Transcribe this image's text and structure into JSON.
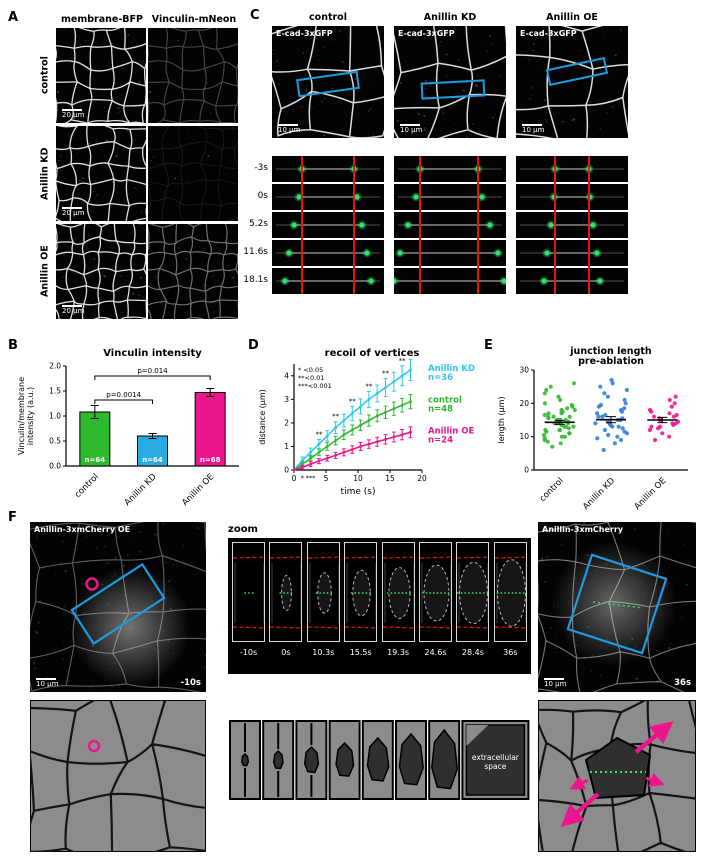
{
  "panels": {
    "A": "A",
    "B": "B",
    "C": "C",
    "D": "D",
    "E": "E",
    "F": "F"
  },
  "colors": {
    "green": "#2db92d",
    "blue": "#29abe2",
    "cyan": "#2ec9f0",
    "magenta": "#ec168c",
    "red": "#e8140c",
    "annotation_blue": "#1e9be0",
    "green_dot": "#2ee56b",
    "dark_cell": "#2f2f2f",
    "schematic_gray": "#8c8c8c"
  },
  "panelA": {
    "col_headers": [
      "membrane-BFP",
      "Vinculin-mNeon"
    ],
    "row_labels": [
      "control",
      "Anillin KD",
      "Anillin OE"
    ],
    "scale_bar": "20 μm"
  },
  "panelC": {
    "col_headers": [
      "control",
      "Anillin KD",
      "Anillin OE"
    ],
    "image_label": "E-cad-3xGFP",
    "scale_bar": "10 μm",
    "time_labels": [
      "-3s",
      "0s",
      "5.2s",
      "11.6s",
      "18.1s"
    ]
  },
  "panelF": {
    "left_label": "Anillin-3xmCherry OE",
    "right_label": "Anillin-3xmCherry",
    "zoom_label": "zoom",
    "scale_bar": "10 μm",
    "left_time": "-10s",
    "right_time": "36s",
    "zoom_times": [
      "-10s",
      "0s",
      "10.3s",
      "15.5s",
      "19.3s",
      "24.6s",
      "28.4s",
      "36s"
    ],
    "extracellular_label": "extracellular space"
  },
  "chart_data": [
    {
      "id": "vinculin_intensity",
      "type": "bar",
      "title": "Vinculin intensity",
      "ylabel": "Vinculin/membrane intensity (a.u.)",
      "ylabel_lines": [
        "Vinculin/membrane",
        "intensity (a.u.)"
      ],
      "categories": [
        "control",
        "Anillin KD",
        "Anillin OE"
      ],
      "values": [
        1.08,
        0.6,
        1.47
      ],
      "errors": [
        0.13,
        0.05,
        0.08
      ],
      "bar_colors": [
        "#2db92d",
        "#29abe2",
        "#ec168c"
      ],
      "n_labels": [
        "n=64",
        "n=64",
        "n=68"
      ],
      "ylim": [
        0,
        2.0
      ],
      "yticks": [
        0,
        0.5,
        1.0,
        1.5,
        2.0
      ],
      "significance": [
        {
          "from": 0,
          "to": 1,
          "label": "p=0.0014",
          "y": 1.32
        },
        {
          "from": 0,
          "to": 2,
          "label": "p=0.014",
          "y": 1.8
        }
      ]
    },
    {
      "id": "recoil_of_vertices",
      "type": "line",
      "title": "recoil of vertices",
      "xlabel": "time (s)",
      "ylabel": "distance (μm)",
      "xlim": [
        0,
        20
      ],
      "ylim": [
        0,
        4.5
      ],
      "xticks": [
        0,
        5,
        10,
        15,
        20
      ],
      "yticks": [
        0,
        1,
        2,
        3,
        4
      ],
      "annotations": [
        "* <0.05",
        "**<0.01",
        "***<0.001"
      ],
      "below_axis_stars": [
        {
          "x": 1.3,
          "label": "*"
        },
        {
          "x": 2.6,
          "label": "***"
        }
      ],
      "x": [
        0,
        1.3,
        2.6,
        3.9,
        5.2,
        6.5,
        7.8,
        9.1,
        10.4,
        11.7,
        13.0,
        14.3,
        15.6,
        16.9,
        18.2
      ],
      "series": [
        {
          "name": "Anillin KD",
          "n_label": "n=36",
          "color": "#2ec9f0",
          "values": [
            0,
            0.4,
            0.75,
            1.1,
            1.45,
            1.8,
            2.1,
            2.4,
            2.7,
            3.0,
            3.25,
            3.5,
            3.75,
            4.0,
            4.25
          ],
          "errors": [
            0,
            0.15,
            0.18,
            0.2,
            0.22,
            0.25,
            0.27,
            0.3,
            0.32,
            0.34,
            0.36,
            0.38,
            0.4,
            0.42,
            0.45
          ],
          "stars_above": "**",
          "star_indices": [
            3,
            5,
            7,
            9,
            11,
            13
          ]
        },
        {
          "name": "control",
          "n_label": "n=48",
          "color": "#2db92d",
          "values": [
            0,
            0.25,
            0.5,
            0.75,
            1.0,
            1.25,
            1.5,
            1.7,
            1.9,
            2.1,
            2.3,
            2.45,
            2.6,
            2.75,
            2.9
          ],
          "errors": [
            0,
            0.1,
            0.12,
            0.14,
            0.16,
            0.18,
            0.2,
            0.21,
            0.22,
            0.24,
            0.25,
            0.26,
            0.28,
            0.29,
            0.3
          ],
          "stars_above": "",
          "star_indices": []
        },
        {
          "name": "Anillin OE",
          "n_label": "n=24",
          "color": "#ec168c",
          "values": [
            0,
            0.12,
            0.25,
            0.38,
            0.5,
            0.62,
            0.75,
            0.87,
            1.0,
            1.1,
            1.2,
            1.3,
            1.4,
            1.5,
            1.6
          ],
          "errors": [
            0,
            0.08,
            0.1,
            0.11,
            0.12,
            0.13,
            0.15,
            0.16,
            0.17,
            0.18,
            0.19,
            0.2,
            0.21,
            0.22,
            0.23
          ],
          "stars_above": "",
          "star_indices": []
        }
      ]
    },
    {
      "id": "junction_length",
      "type": "scatter",
      "title": "junction length pre-ablation",
      "title_lines": [
        "junction length",
        "pre-ablation"
      ],
      "ylabel": "length (μm)",
      "ylim": [
        0,
        30
      ],
      "yticks": [
        0,
        10,
        20,
        30
      ],
      "categories": [
        "control",
        "Anillin KD",
        "Anillin OE"
      ],
      "groups": [
        {
          "name": "control",
          "color": "#2db92d",
          "mean": 14.3,
          "sem": 0.6,
          "values": [
            7,
            8,
            8.5,
            9,
            9.5,
            10,
            10,
            10.5,
            11,
            11,
            11.5,
            12,
            12,
            12,
            12.5,
            13,
            13,
            13,
            13.5,
            14,
            14,
            14,
            14,
            14.5,
            15,
            15,
            15,
            15,
            15.5,
            16,
            16,
            16,
            16.5,
            17,
            17,
            17.5,
            18,
            18,
            18.5,
            19,
            19.5,
            20,
            21,
            22,
            23,
            24,
            25,
            26
          ]
        },
        {
          "name": "Anillin KD",
          "color": "#2a7fd4",
          "mean": 15.1,
          "sem": 0.9,
          "values": [
            6,
            8,
            9,
            9.5,
            10,
            10.5,
            11,
            11.5,
            12,
            12.5,
            13,
            13,
            13.5,
            14,
            14,
            14.5,
            15,
            15,
            15.5,
            16,
            16,
            16.5,
            17,
            17.5,
            18,
            18.5,
            19,
            19.5,
            20,
            21,
            22,
            23,
            24,
            25,
            26,
            27
          ]
        },
        {
          "name": "Anillin OE",
          "color": "#ec168c",
          "mean": 15.0,
          "sem": 0.8,
          "values": [
            9,
            10,
            11,
            12,
            12.5,
            13,
            13,
            13.5,
            14,
            14,
            14.5,
            15,
            15,
            15.5,
            16,
            16,
            16.5,
            17,
            17.5,
            18,
            19,
            20,
            21,
            22
          ]
        }
      ]
    }
  ]
}
